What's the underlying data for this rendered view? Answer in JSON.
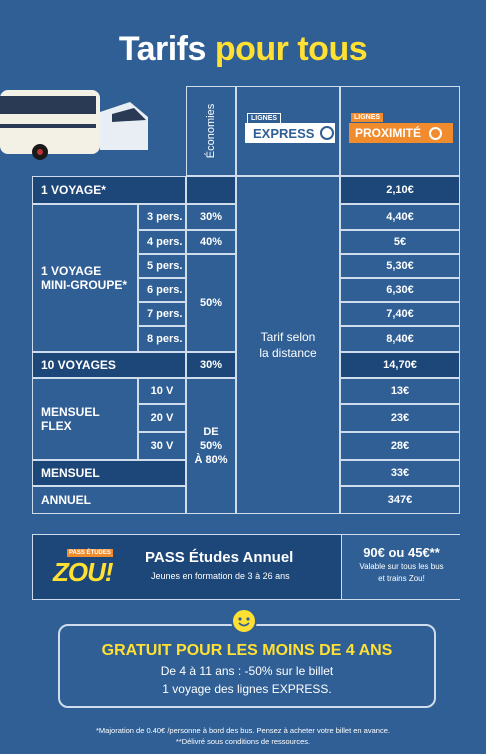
{
  "title": {
    "part1": "Tarifs",
    "part2": "pour tous"
  },
  "header": {
    "economies": "Économies",
    "express": {
      "small": "LIGNES",
      "label": "EXPRESS"
    },
    "proximite": {
      "small": "LIGNES",
      "label": "PROXIMITÉ"
    }
  },
  "rows": {
    "voyage1": {
      "label": "1 VOYAGE*",
      "price": "2,10€"
    },
    "mini": {
      "label1": "1 VOYAGE",
      "label2": "MINI-GROUPE*",
      "sub": [
        {
          "p": "3 pers.",
          "eco": "30%",
          "price": "4,40€"
        },
        {
          "p": "4 pers.",
          "eco": "40%",
          "price": "5€"
        },
        {
          "p": "5 pers.",
          "price": "5,30€"
        },
        {
          "p": "6 pers.",
          "price": "6,30€"
        },
        {
          "p": "7 pers.",
          "price": "7,40€"
        },
        {
          "p": "8 pers.",
          "price": "8,40€"
        }
      ],
      "eco_group": "50%"
    },
    "voyage10": {
      "label": "10 VOYAGES",
      "eco": "30%",
      "price": "14,70€"
    },
    "flex": {
      "label1": "MENSUEL",
      "label2": "FLEX",
      "sub": [
        {
          "v": "10 V",
          "price": "13€"
        },
        {
          "v": "20 V",
          "price": "23€"
        },
        {
          "v": "30 V",
          "price": "28€"
        }
      ],
      "eco1": "DE",
      "eco2": "50%",
      "eco3": "À 80%"
    },
    "mensuel": {
      "label": "MENSUEL",
      "price": "33€"
    },
    "annuel": {
      "label": "ANNUEL",
      "price": "347€"
    }
  },
  "tarif_distance": {
    "l1": "Tarif selon",
    "l2": "la distance"
  },
  "pass": {
    "logo_small": "PASS ÉTUDES",
    "logo_big": "ZOU!",
    "title": "PASS Études Annuel",
    "subtitle": "Jeunes en formation de 3 à 26 ans",
    "price": "90€ ou 45€**",
    "price_sub1": "Valable sur tous les bus",
    "price_sub2": "et trains Zou!"
  },
  "free": {
    "title": "GRATUIT POUR LES MOINS DE 4 ANS",
    "line1": "De 4 à 11 ans : -50% sur le billet",
    "line2": "1 voyage des lignes EXPRESS."
  },
  "footnotes": {
    "f1": "*Majoration de 0.40€ /personne à bord des bus. Pensez à acheter votre billet en avance.",
    "f2": "**Délivré sous conditions de ressources."
  }
}
